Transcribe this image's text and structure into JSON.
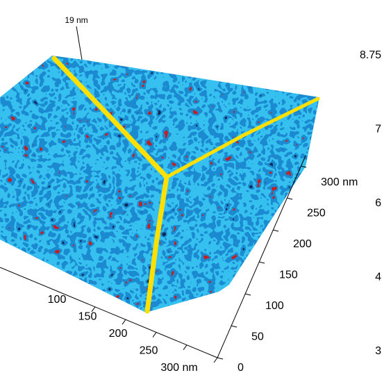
{
  "chart_data": {
    "type": "surface3d",
    "annotations": [
      "19 nm"
    ],
    "xticks": [
      100,
      150,
      200,
      250,
      {
        "value": 300,
        "label": "300 nm"
      }
    ],
    "yticks": [
      0,
      50,
      100,
      150,
      200,
      250,
      {
        "value": 300,
        "label": "300 nm"
      }
    ],
    "colorbar_ticks": [
      {
        "value": 8.75,
        "label": "8.75"
      },
      7,
      6,
      4,
      3
    ],
    "colors": [
      "#0a2a55",
      "#1a8ad0",
      "#36c0f0",
      "#c02020",
      "#ffe000"
    ]
  }
}
